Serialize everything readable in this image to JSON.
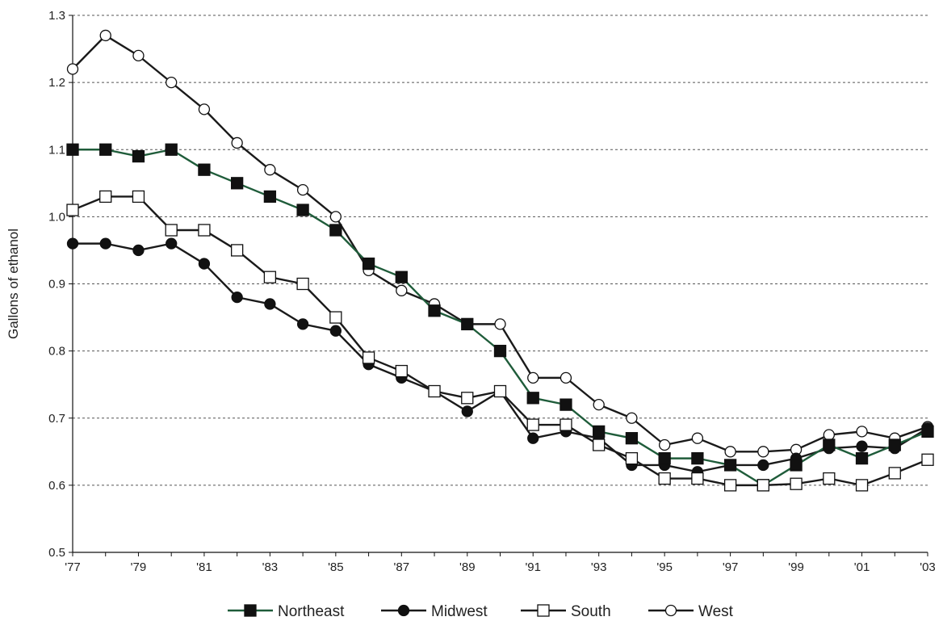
{
  "chart_data": {
    "type": "line",
    "title": "",
    "xlabel": "",
    "ylabel": "Gallons of ethanol",
    "ylim": [
      0.5,
      1.3
    ],
    "yticks": [
      0.5,
      0.6,
      0.7,
      0.8,
      0.9,
      1.0,
      1.1,
      1.2,
      1.3
    ],
    "ytick_labels": [
      "0.5",
      "0.6",
      "0.7",
      "0.8",
      "0.9",
      "1.0",
      "1.1",
      "1.2",
      "1.3"
    ],
    "x": [
      1977,
      1978,
      1979,
      1980,
      1981,
      1982,
      1983,
      1984,
      1985,
      1986,
      1987,
      1988,
      1989,
      1990,
      1991,
      1992,
      1993,
      1994,
      1995,
      1996,
      1997,
      1998,
      1999,
      2000,
      2001,
      2002,
      2003
    ],
    "xlim": [
      1977,
      2003
    ],
    "xticks": [
      1977,
      1979,
      1981,
      1983,
      1985,
      1987,
      1989,
      1991,
      1993,
      1995,
      1997,
      1999,
      2001,
      2003
    ],
    "xtick_labels": [
      "'77",
      "'79",
      "'81",
      "'83",
      "'85",
      "'87",
      "'89",
      "'91",
      "'93",
      "'95",
      "'97",
      "'99",
      "'01",
      "'03"
    ],
    "grid": "horizontal dashed",
    "legend": "bottom",
    "series": [
      {
        "name": "Northeast",
        "marker": "filled-square",
        "line_color": "#1f5c3a",
        "marker_fill": "#111111",
        "values": [
          1.1,
          1.1,
          1.09,
          1.1,
          1.07,
          1.05,
          1.03,
          1.01,
          0.98,
          0.93,
          0.91,
          0.86,
          0.84,
          0.8,
          0.73,
          0.72,
          0.68,
          0.67,
          0.64,
          0.64,
          0.63,
          0.6,
          0.63,
          0.66,
          0.64,
          0.66,
          0.68
        ]
      },
      {
        "name": "Midwest",
        "marker": "filled-circle",
        "line_color": "#1a1a1a",
        "marker_fill": "#111111",
        "values": [
          0.96,
          0.96,
          0.95,
          0.96,
          0.93,
          0.88,
          0.87,
          0.84,
          0.83,
          0.78,
          0.76,
          0.74,
          0.71,
          0.74,
          0.67,
          0.68,
          0.67,
          0.63,
          0.63,
          0.62,
          0.63,
          0.63,
          0.64,
          0.655,
          0.658,
          0.655,
          0.685
        ]
      },
      {
        "name": "South",
        "marker": "open-square",
        "line_color": "#1a1a1a",
        "marker_fill": "#ffffff",
        "values": [
          1.01,
          1.03,
          1.03,
          0.98,
          0.98,
          0.95,
          0.91,
          0.9,
          0.85,
          0.79,
          0.77,
          0.74,
          0.73,
          0.74,
          0.69,
          0.69,
          0.66,
          0.64,
          0.61,
          0.61,
          0.6,
          0.6,
          0.602,
          0.61,
          0.6,
          0.618,
          0.638
        ]
      },
      {
        "name": "West",
        "marker": "open-circle",
        "line_color": "#1a1a1a",
        "marker_fill": "#ffffff",
        "values": [
          1.22,
          1.27,
          1.24,
          1.2,
          1.16,
          1.11,
          1.07,
          1.04,
          1.0,
          0.92,
          0.89,
          0.87,
          0.84,
          0.84,
          0.76,
          0.76,
          0.72,
          0.7,
          0.66,
          0.67,
          0.65,
          0.65,
          0.653,
          0.675,
          0.68,
          0.67,
          0.687
        ]
      }
    ]
  }
}
